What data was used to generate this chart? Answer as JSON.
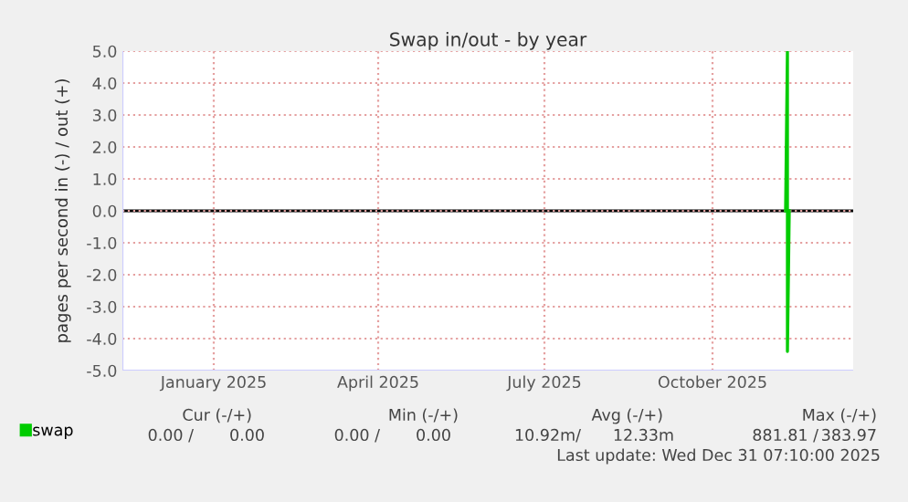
{
  "chart_data": {
    "type": "line",
    "title": "Swap in/out - by year",
    "ylabel": "pages per second in (-) / out (+)",
    "x": [
      "2025-11-24",
      "2025-11-25",
      "2025-11-25",
      "2025-11-26"
    ],
    "series": [
      {
        "name": "swap",
        "color": "#00cc00",
        "values": [
          0,
          5.0,
          -4.4,
          0
        ]
      }
    ],
    "xlim": [
      "2024-11-26",
      "2025-12-31"
    ],
    "xticks": [
      {
        "value": "2025-01-15",
        "label": "January 2025"
      },
      {
        "value": "2025-04-15",
        "label": "April 2025"
      },
      {
        "value": "2025-07-15",
        "label": "July 2025"
      },
      {
        "value": "2025-10-15",
        "label": "October 2025"
      }
    ],
    "ylim": [
      -5,
      5
    ],
    "yticks": [
      {
        "value": -5,
        "label": "-5.0"
      },
      {
        "value": -4,
        "label": "-4.0"
      },
      {
        "value": -3,
        "label": "-3.0"
      },
      {
        "value": -2,
        "label": "-2.0"
      },
      {
        "value": -1,
        "label": "-1.0"
      },
      {
        "value": 0,
        "label": "0.0"
      },
      {
        "value": 1,
        "label": "1.0"
      },
      {
        "value": 2,
        "label": "2.0"
      },
      {
        "value": 3,
        "label": "3.0"
      },
      {
        "value": 4,
        "label": "4.0"
      },
      {
        "value": 5,
        "label": "5.0"
      }
    ],
    "ref_lines": [
      {
        "axis": "y",
        "value": 0,
        "color": "#000000"
      }
    ],
    "grid": true,
    "legend": "bottom left",
    "marker": "none",
    "line_style": "solid",
    "annotations": [
      "Cur (-/+)",
      "Min (-/+)",
      "Avg (-/+)",
      "Max (-/+)",
      "0.00 /",
      "0.00",
      "0.00 /",
      "0.00",
      "10.92m/",
      "12.33m",
      "881.81 /",
      "383.97",
      "Last update: Wed Dec 31 07:10:00 2025"
    ]
  }
}
